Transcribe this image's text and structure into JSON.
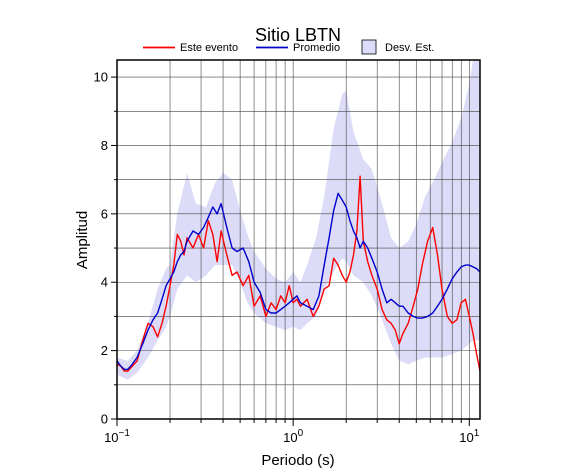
{
  "chart_data": {
    "type": "line",
    "title": "Sitio LBTN",
    "xlabel": "Periodo (s)",
    "ylabel": "Amplitud",
    "xscale": "log",
    "xlim": [
      0.1,
      11.5
    ],
    "ylim": [
      0,
      10.5
    ],
    "x_ticks": [
      {
        "value": 0.1,
        "base": "10",
        "exp": "−1"
      },
      {
        "value": 1,
        "base": "10",
        "exp": "0"
      },
      {
        "value": 10,
        "base": "10",
        "exp": "1"
      }
    ],
    "y_ticks": [
      0,
      2,
      4,
      6,
      8,
      10
    ],
    "y_tick_labels": [
      "0",
      "2",
      "4",
      "6",
      "8",
      "10"
    ],
    "grid": true,
    "legend": {
      "placement": "top",
      "entries": [
        {
          "label": "Este evento",
          "type": "line",
          "color": "#ff0000"
        },
        {
          "label": "Promedio",
          "type": "line",
          "color": "#0000cc"
        },
        {
          "label": "Desv. Est.",
          "type": "box",
          "color": "#dcdcf8"
        }
      ]
    },
    "band": {
      "name": "Desv. Est.",
      "color": "#dcdcf8",
      "x": [
        0.1,
        0.115,
        0.13,
        0.15,
        0.17,
        0.19,
        0.2,
        0.22,
        0.25,
        0.28,
        0.32,
        0.36,
        0.4,
        0.45,
        0.5,
        0.55,
        0.6,
        0.7,
        0.8,
        0.9,
        1.0,
        1.1,
        1.2,
        1.35,
        1.5,
        1.7,
        1.9,
        2.0,
        2.2,
        2.5,
        2.8,
        3.2,
        3.6,
        4.0,
        4.5,
        5.0,
        5.6,
        6.3,
        7.0,
        8.0,
        9.0,
        10.0,
        10.5,
        11.5
      ],
      "upper": [
        1.8,
        1.7,
        2.0,
        2.8,
        3.8,
        4.4,
        4.5,
        6.0,
        7.2,
        6.3,
        6.2,
        6.9,
        7.2,
        7.0,
        6.1,
        5.4,
        4.9,
        4.4,
        4.1,
        4.0,
        4.3,
        4.0,
        4.5,
        5.3,
        6.5,
        8.5,
        9.5,
        9.6,
        8.4,
        7.6,
        7.3,
        6.3,
        5.3,
        5.0,
        5.2,
        5.7,
        6.5,
        7.0,
        7.5,
        8.1,
        8.8,
        9.8,
        10.5,
        10.5
      ],
      "lower": [
        1.3,
        1.15,
        1.35,
        1.8,
        2.3,
        2.7,
        3.0,
        3.8,
        4.2,
        4.0,
        4.2,
        4.5,
        4.5,
        4.5,
        4.0,
        3.4,
        3.1,
        2.8,
        2.7,
        2.6,
        2.7,
        2.6,
        2.8,
        3.0,
        3.8,
        4.3,
        4.7,
        4.6,
        4.2,
        4.0,
        3.6,
        2.9,
        2.2,
        1.7,
        1.6,
        1.7,
        1.8,
        1.8,
        1.8,
        1.9,
        2.0,
        2.2,
        2.3,
        2.3
      ]
    },
    "series": [
      {
        "name": "Este evento",
        "color": "#ff0000",
        "x": [
          0.1,
          0.105,
          0.11,
          0.115,
          0.12,
          0.13,
          0.14,
          0.15,
          0.16,
          0.17,
          0.18,
          0.19,
          0.2,
          0.21,
          0.22,
          0.23,
          0.24,
          0.25,
          0.27,
          0.29,
          0.31,
          0.33,
          0.35,
          0.37,
          0.39,
          0.42,
          0.45,
          0.48,
          0.52,
          0.56,
          0.6,
          0.65,
          0.7,
          0.75,
          0.8,
          0.85,
          0.9,
          0.95,
          1.0,
          1.05,
          1.1,
          1.2,
          1.3,
          1.4,
          1.5,
          1.6,
          1.7,
          1.8,
          1.9,
          2.0,
          2.1,
          2.2,
          2.3,
          2.4,
          2.5,
          2.65,
          2.8,
          3.0,
          3.2,
          3.4,
          3.6,
          3.8,
          4.0,
          4.2,
          4.5,
          4.8,
          5.1,
          5.4,
          5.8,
          6.2,
          6.6,
          7.0,
          7.5,
          8.0,
          8.5,
          9.0,
          9.5,
          10.0,
          10.5,
          11.0,
          11.5
        ],
        "y": [
          1.6,
          1.55,
          1.4,
          1.4,
          1.5,
          1.7,
          2.3,
          2.8,
          2.7,
          2.4,
          2.8,
          3.3,
          3.9,
          4.5,
          5.4,
          5.2,
          4.8,
          5.3,
          5.0,
          5.4,
          5.0,
          5.8,
          5.4,
          4.6,
          5.5,
          4.8,
          4.2,
          4.3,
          3.9,
          4.2,
          3.3,
          3.6,
          3.0,
          3.4,
          3.2,
          3.6,
          3.4,
          3.9,
          3.4,
          3.5,
          3.3,
          3.5,
          3.0,
          3.3,
          3.8,
          3.9,
          4.7,
          4.5,
          4.2,
          4.0,
          4.3,
          4.8,
          5.5,
          7.1,
          5.2,
          4.6,
          4.2,
          3.8,
          3.2,
          2.9,
          2.8,
          2.6,
          2.2,
          2.5,
          2.8,
          3.3,
          3.8,
          4.5,
          5.2,
          5.6,
          4.8,
          3.8,
          3.0,
          2.8,
          2.9,
          3.4,
          3.5,
          3.0,
          2.5,
          1.9,
          1.4
        ]
      },
      {
        "name": "Promedio",
        "color": "#0000cc",
        "x": [
          0.1,
          0.105,
          0.11,
          0.115,
          0.12,
          0.13,
          0.14,
          0.15,
          0.16,
          0.17,
          0.18,
          0.19,
          0.2,
          0.21,
          0.22,
          0.23,
          0.24,
          0.25,
          0.27,
          0.29,
          0.31,
          0.33,
          0.35,
          0.37,
          0.39,
          0.42,
          0.45,
          0.48,
          0.52,
          0.56,
          0.6,
          0.65,
          0.7,
          0.75,
          0.8,
          0.85,
          0.9,
          0.95,
          1.0,
          1.05,
          1.1,
          1.2,
          1.3,
          1.4,
          1.5,
          1.6,
          1.7,
          1.8,
          1.9,
          2.0,
          2.1,
          2.2,
          2.3,
          2.4,
          2.5,
          2.65,
          2.8,
          3.0,
          3.2,
          3.4,
          3.6,
          3.8,
          4.0,
          4.2,
          4.5,
          4.8,
          5.1,
          5.4,
          5.8,
          6.2,
          6.6,
          7.0,
          7.5,
          8.0,
          8.5,
          9.0,
          9.5,
          10.0,
          10.5,
          11.0,
          11.5
        ],
        "y": [
          1.7,
          1.55,
          1.45,
          1.45,
          1.55,
          1.8,
          2.2,
          2.6,
          2.9,
          3.1,
          3.5,
          3.9,
          4.1,
          4.3,
          4.6,
          4.8,
          4.9,
          5.2,
          5.5,
          5.4,
          5.6,
          5.9,
          6.2,
          6.0,
          6.3,
          5.6,
          5.0,
          4.9,
          5.0,
          4.6,
          4.0,
          3.7,
          3.2,
          3.1,
          3.1,
          3.2,
          3.3,
          3.4,
          3.5,
          3.6,
          3.4,
          3.3,
          3.2,
          3.6,
          4.5,
          5.3,
          6.1,
          6.6,
          6.4,
          6.2,
          5.8,
          5.5,
          5.3,
          5.0,
          5.2,
          5.0,
          4.7,
          4.3,
          3.8,
          3.4,
          3.5,
          3.4,
          3.3,
          3.3,
          3.1,
          3.0,
          2.95,
          2.95,
          3.0,
          3.1,
          3.3,
          3.5,
          3.8,
          4.1,
          4.3,
          4.45,
          4.5,
          4.5,
          4.45,
          4.4,
          4.3
        ]
      }
    ]
  }
}
